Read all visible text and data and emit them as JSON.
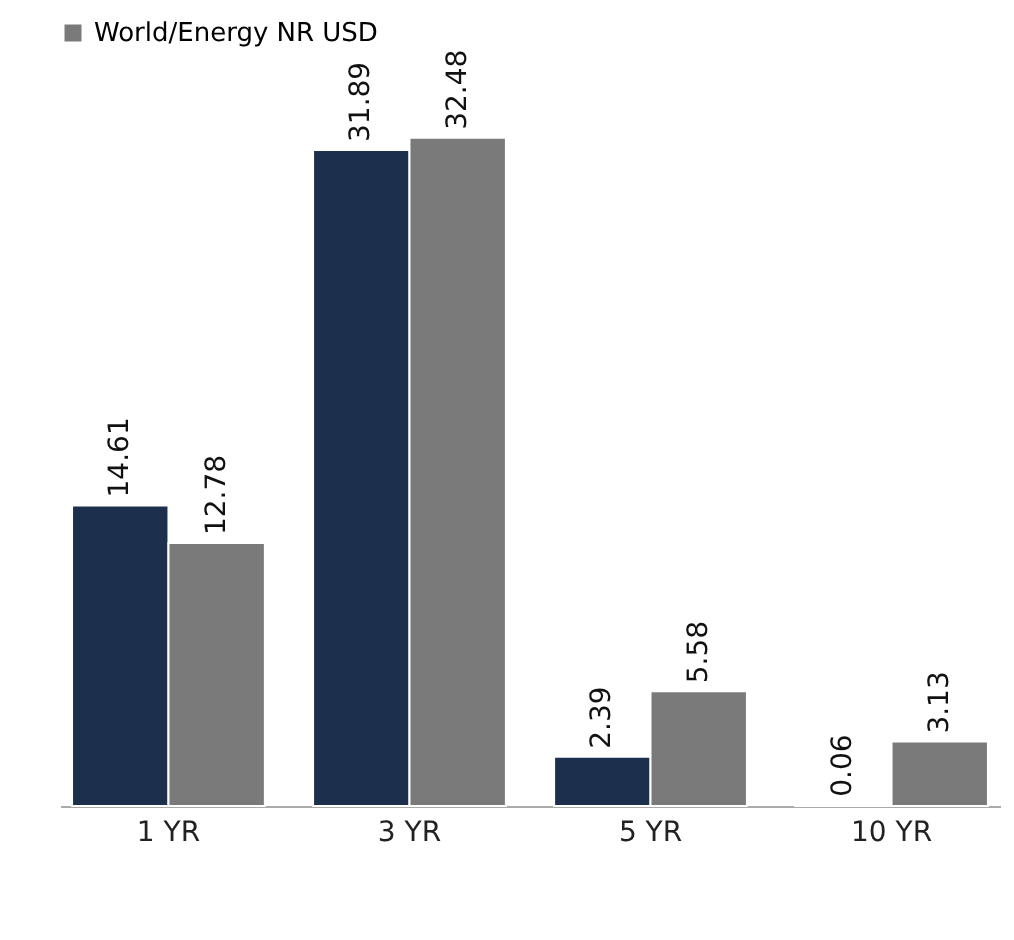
{
  "chart_data": {
    "type": "bar",
    "categories": [
      "1 YR",
      "3 YR",
      "5 YR",
      "10 YR"
    ],
    "series": [
      {
        "color": "#1c2f4d",
        "values": [
          14.61,
          31.89,
          2.39,
          0.06
        ]
      },
      {
        "name": "World/Energy NR USD",
        "color": "#7a7a7a",
        "values": [
          12.78,
          32.48,
          5.58,
          3.13
        ]
      }
    ],
    "data_labels": true,
    "legend": "top left",
    "grid": false
  }
}
